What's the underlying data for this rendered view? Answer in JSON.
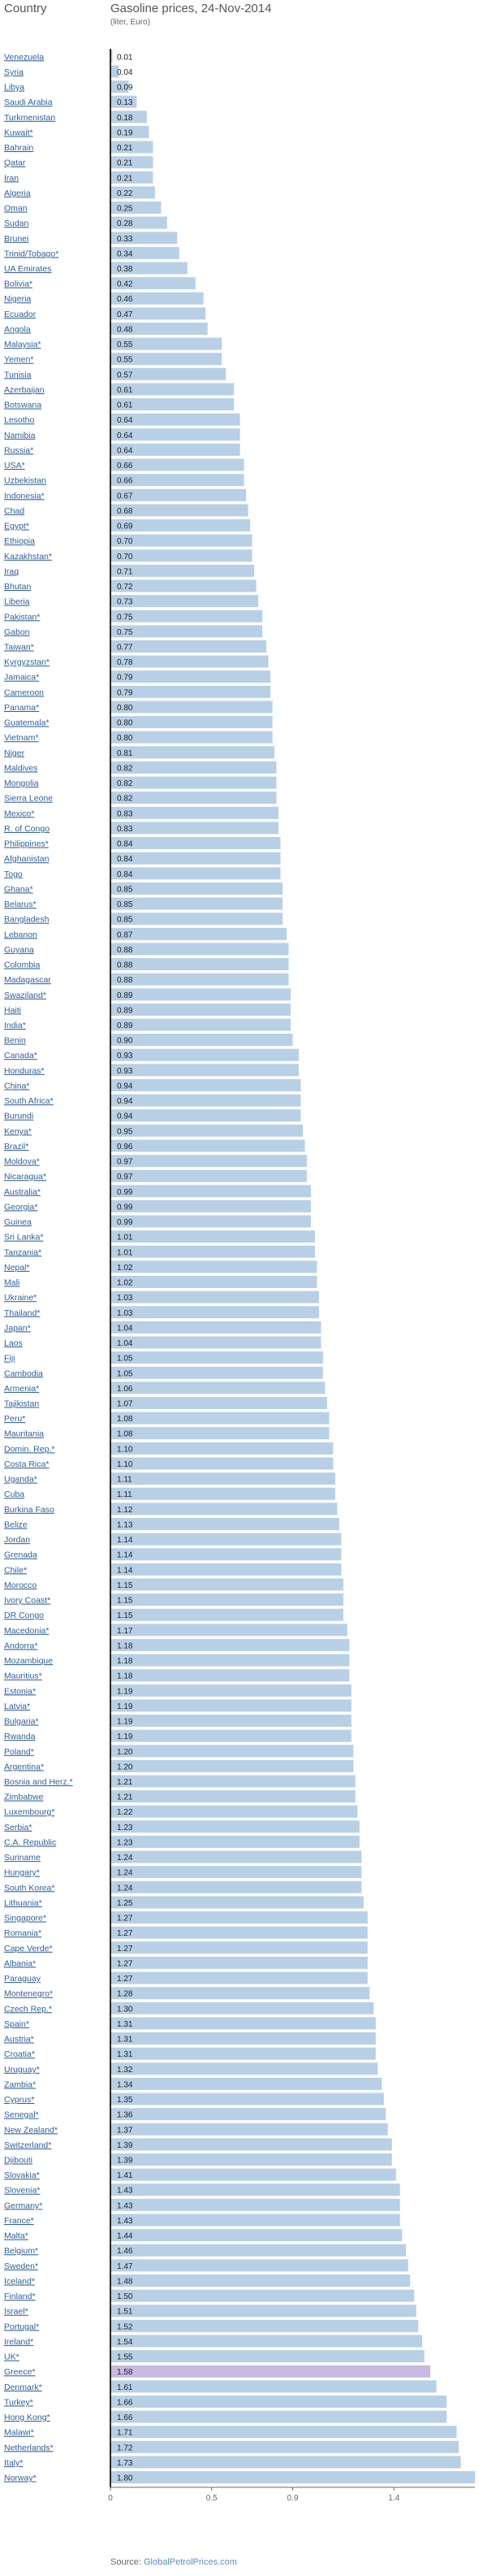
{
  "header": {
    "column_label": "Country",
    "title": "Gasoline prices, 24-Nov-2014",
    "subtitle": "(liter, Euro)"
  },
  "source": {
    "prefix": "Source:",
    "name": "GlobalPetrolPrices.com"
  },
  "colors": {
    "bar": "#b8d0e6",
    "bar_highlight": "#c9b8e2",
    "link_text": "#2f5f9a",
    "value_text": "#222222",
    "axis": "#666666"
  },
  "chart_data": {
    "type": "bar",
    "orientation": "horizontal",
    "title": "Gasoline prices, 24-Nov-2014",
    "subtitle": "(liter, Euro)",
    "xlim": [
      0,
      1.8
    ],
    "xticks": [
      "0",
      "0.5",
      "0.9",
      "1.4"
    ],
    "highlighted_category": "Greece*",
    "categories": [
      "Venezuela",
      "Syria",
      "Libya",
      "Saudi Arabia",
      "Turkmenistan",
      "Kuwait*",
      "Bahrain",
      "Qatar",
      "Iran",
      "Algeria",
      "Oman",
      "Sudan",
      "Brunei",
      "Trinid/Tobago*",
      "UA Emirates",
      "Bolivia*",
      "Nigeria",
      "Ecuador",
      "Angola",
      "Malaysia*",
      "Yemen*",
      "Tunisia",
      "Azerbaijan",
      "Botswana",
      "Lesotho",
      "Namibia",
      "Russia*",
      "USA*",
      "Uzbekistan",
      "Indonesia*",
      "Chad",
      "Egypt*",
      "Ethiopia",
      "Kazakhstan*",
      "Iraq",
      "Bhutan",
      "Liberia",
      "Pakistan*",
      "Gabon",
      "Taiwan*",
      "Kyrgyzstan*",
      "Jamaica*",
      "Cameroon",
      "Panama*",
      "Guatemala*",
      "Vietnam*",
      "Niger",
      "Maldives",
      "Mongolia",
      "Sierra Leone",
      "Mexico*",
      "R. of Congo",
      "Philippines*",
      "Afghanistan",
      "Togo",
      "Ghana*",
      "Belarus*",
      "Bangladesh",
      "Lebanon",
      "Guyana",
      "Colombia",
      "Madagascar",
      "Swaziland*",
      "Haiti",
      "India*",
      "Benin",
      "Canada*",
      "Honduras*",
      "China*",
      "South Africa*",
      "Burundi",
      "Kenya*",
      "Brazil*",
      "Moldova*",
      "Nicaragua*",
      "Australia*",
      "Georgia*",
      "Guinea",
      "Sri Lanka*",
      "Tanzania*",
      "Nepal*",
      "Mali",
      "Ukraine*",
      "Thailand*",
      "Japan*",
      "Laos",
      "Fiji",
      "Cambodia",
      "Armenia*",
      "Tajikistan",
      "Peru*",
      "Mauritania",
      "Domin. Rep.*",
      "Costa Rica*",
      "Uganda*",
      "Cuba",
      "Burkina Faso",
      "Belize",
      "Jordan",
      "Grenada",
      "Chile*",
      "Morocco",
      "Ivory Coast*",
      "DR Congo",
      "Macedonia*",
      "Andorra*",
      "Mozambique",
      "Mauritius*",
      "Estonia*",
      "Latvia*",
      "Bulgaria*",
      "Rwanda",
      "Poland*",
      "Argentina*",
      "Bosnia and Herz.*",
      "Zimbabwe",
      "Luxembourg*",
      "Serbia*",
      "C.A. Republic",
      "Suriname",
      "Hungary*",
      "South Korea*",
      "Lithuania*",
      "Singapore*",
      "Romania*",
      "Cape Verde*",
      "Albania*",
      "Paraguay",
      "Montenegro*",
      "Czech Rep.*",
      "Spain*",
      "Austria*",
      "Croatia*",
      "Uruguay*",
      "Zambia*",
      "Cyprus*",
      "Senegal*",
      "New Zealand*",
      "Switzerland*",
      "Djibouti",
      "Slovakia*",
      "Slovenia*",
      "Germany*",
      "France*",
      "Malta*",
      "Belgium*",
      "Sweden*",
      "Iceland*",
      "Finland*",
      "Israel*",
      "Portugal*",
      "Ireland*",
      "UK*",
      "Greece*",
      "Denmark*",
      "Turkey*",
      "Hong Kong*",
      "Malawi*",
      "Netherlands*",
      "Italy*",
      "Norway*"
    ],
    "values": [
      0.01,
      0.04,
      0.09,
      0.13,
      0.18,
      0.19,
      0.21,
      0.21,
      0.21,
      0.22,
      0.25,
      0.28,
      0.33,
      0.34,
      0.38,
      0.42,
      0.46,
      0.47,
      0.48,
      0.55,
      0.55,
      0.57,
      0.61,
      0.61,
      0.64,
      0.64,
      0.64,
      0.66,
      0.66,
      0.67,
      0.68,
      0.69,
      0.7,
      0.7,
      0.71,
      0.72,
      0.73,
      0.75,
      0.75,
      0.77,
      0.78,
      0.79,
      0.79,
      0.8,
      0.8,
      0.8,
      0.81,
      0.82,
      0.82,
      0.82,
      0.83,
      0.83,
      0.84,
      0.84,
      0.84,
      0.85,
      0.85,
      0.85,
      0.87,
      0.88,
      0.88,
      0.88,
      0.89,
      0.89,
      0.89,
      0.9,
      0.93,
      0.93,
      0.94,
      0.94,
      0.94,
      0.95,
      0.96,
      0.97,
      0.97,
      0.99,
      0.99,
      0.99,
      1.01,
      1.01,
      1.02,
      1.02,
      1.03,
      1.03,
      1.04,
      1.04,
      1.05,
      1.05,
      1.06,
      1.07,
      1.08,
      1.08,
      1.1,
      1.1,
      1.11,
      1.11,
      1.12,
      1.13,
      1.14,
      1.14,
      1.14,
      1.15,
      1.15,
      1.15,
      1.17,
      1.18,
      1.18,
      1.18,
      1.19,
      1.19,
      1.19,
      1.19,
      1.2,
      1.2,
      1.21,
      1.21,
      1.22,
      1.23,
      1.23,
      1.24,
      1.24,
      1.24,
      1.25,
      1.27,
      1.27,
      1.27,
      1.27,
      1.27,
      1.28,
      1.3,
      1.31,
      1.31,
      1.31,
      1.32,
      1.34,
      1.35,
      1.36,
      1.37,
      1.39,
      1.39,
      1.41,
      1.43,
      1.43,
      1.43,
      1.44,
      1.46,
      1.47,
      1.48,
      1.5,
      1.51,
      1.52,
      1.54,
      1.55,
      1.58,
      1.61,
      1.66,
      1.66,
      1.71,
      1.72,
      1.73,
      1.8
    ]
  }
}
